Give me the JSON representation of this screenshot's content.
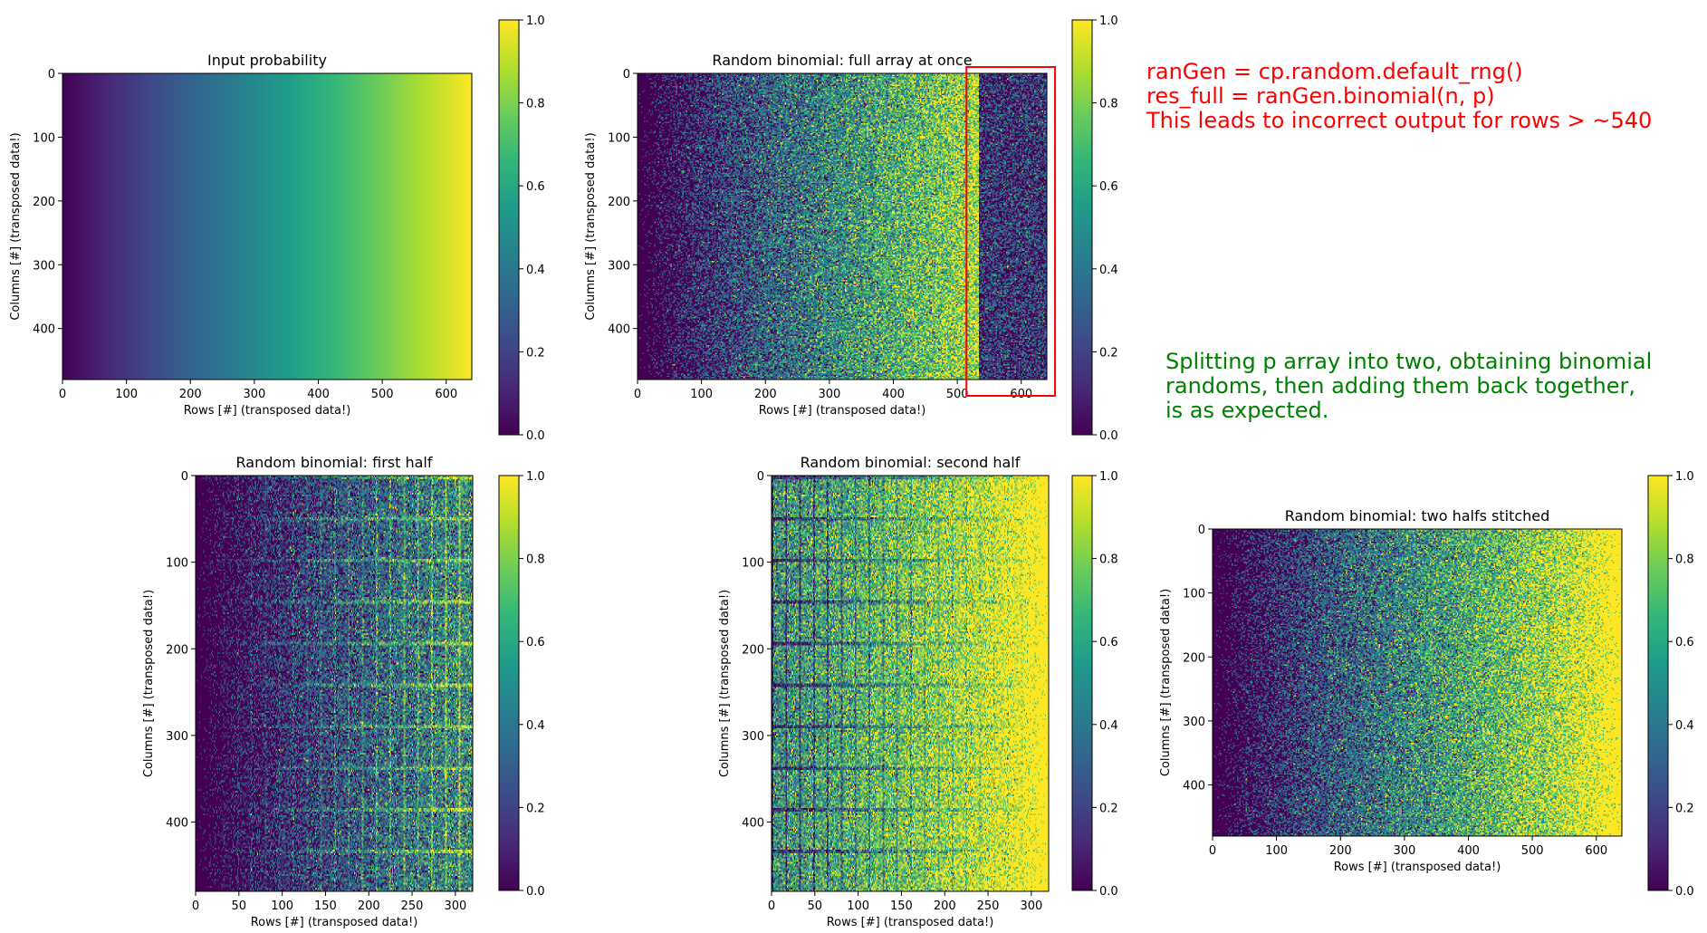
{
  "colors": {
    "annotation_red": "#ff0000",
    "annotation_green": "#008000",
    "highlight_box": "#ff0000",
    "colormap": "viridis"
  },
  "annotations": {
    "red_lines": [
      "ranGen = cp.random.default_rng()",
      "res_full = ranGen.binomial(n, p)",
      "This leads to incorrect output for rows > ~540"
    ],
    "green_lines": [
      "Splitting p array into two, obtaining binomial",
      "randoms, then adding them back together,",
      "is as expected."
    ]
  },
  "chart_data": [
    {
      "type": "heatmap",
      "title": "Input probability",
      "xlabel": "Rows [#] (transposed data!)",
      "ylabel": "Columns [#] (transposed data!)",
      "xlim": [
        0,
        640
      ],
      "ylim": [
        480,
        0
      ],
      "xticks": [
        0,
        100,
        200,
        300,
        400,
        500,
        600
      ],
      "yticks": [
        0,
        100,
        200,
        300,
        400
      ],
      "colorbar": {
        "range": [
          0,
          1
        ],
        "ticks": [
          "0.0",
          "0.2",
          "0.4",
          "0.6",
          "0.8",
          "1.0"
        ]
      },
      "pattern": "gradient",
      "description_values": {
        "p_at_x0": 0.0,
        "p_at_xmax": 1.0
      }
    },
    {
      "type": "heatmap",
      "title": "Random binomial: full array at once",
      "xlabel": "Rows [#] (transposed data!)",
      "ylabel": "Columns [#] (transposed data!)",
      "xlim": [
        0,
        640
      ],
      "ylim": [
        480,
        0
      ],
      "xticks": [
        0,
        100,
        200,
        300,
        400,
        500,
        600
      ],
      "yticks": [
        0,
        100,
        200,
        300,
        400
      ],
      "colorbar": {
        "range": [
          0,
          1
        ],
        "ticks": [
          "0.0",
          "0.2",
          "0.4",
          "0.6",
          "0.8",
          "1.0"
        ]
      },
      "pattern": "noise_broken",
      "break_row": 535,
      "highlight_range": [
        520,
        650
      ]
    },
    {
      "type": "heatmap",
      "title": "Random binomial: first half",
      "xlabel": "Rows [#] (transposed data!)",
      "ylabel": "Columns [#] (transposed data!)",
      "xlim": [
        0,
        320
      ],
      "ylim": [
        480,
        0
      ],
      "xticks": [
        0,
        50,
        100,
        150,
        200,
        250,
        300
      ],
      "yticks": [
        0,
        100,
        200,
        300,
        400
      ],
      "colorbar": {
        "range": [
          0,
          1
        ],
        "ticks": [
          "0.0",
          "0.2",
          "0.4",
          "0.6",
          "0.8",
          "1.0"
        ]
      },
      "pattern": "noise_first_half"
    },
    {
      "type": "heatmap",
      "title": "Random binomial: second half",
      "xlabel": "Rows [#] (transposed data!)",
      "ylabel": "Columns [#] (transposed data!)",
      "xlim": [
        0,
        320
      ],
      "ylim": [
        480,
        0
      ],
      "xticks": [
        0,
        50,
        100,
        150,
        200,
        250,
        300
      ],
      "yticks": [
        0,
        100,
        200,
        300,
        400
      ],
      "colorbar": {
        "range": [
          0,
          1
        ],
        "ticks": [
          "0.0",
          "0.2",
          "0.4",
          "0.6",
          "0.8",
          "1.0"
        ]
      },
      "pattern": "noise_second_half"
    },
    {
      "type": "heatmap",
      "title": "Random binomial: two halfs stitched",
      "xlabel": "Rows [#] (transposed data!)",
      "ylabel": "Columns [#] (transposed data!)",
      "xlim": [
        0,
        640
      ],
      "ylim": [
        480,
        0
      ],
      "xticks": [
        0,
        100,
        200,
        300,
        400,
        500,
        600
      ],
      "yticks": [
        0,
        100,
        200,
        300,
        400
      ],
      "colorbar": {
        "range": [
          0,
          1
        ],
        "ticks": [
          "0.0",
          "0.2",
          "0.4",
          "0.6",
          "0.8",
          "1.0"
        ]
      },
      "pattern": "noise"
    }
  ]
}
